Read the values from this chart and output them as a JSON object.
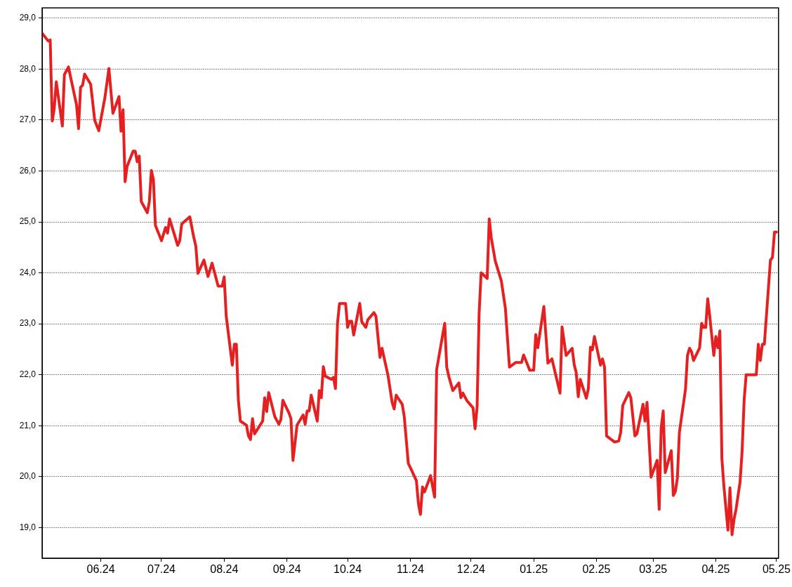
{
  "chart_data": {
    "type": "line",
    "x": [
      "2024-05-03",
      "2024-05-06",
      "2024-05-07",
      "2024-05-08",
      "2024-05-09",
      "2024-05-10",
      "2024-05-13",
      "2024-05-14",
      "2024-05-16",
      "2024-05-20",
      "2024-05-21",
      "2024-05-22",
      "2024-05-23",
      "2024-05-24",
      "2024-05-27",
      "2024-05-29",
      "2024-05-31",
      "2024-06-03",
      "2024-06-05",
      "2024-06-07",
      "2024-06-10",
      "2024-06-11",
      "2024-06-12",
      "2024-06-13",
      "2024-06-14",
      "2024-06-17",
      "2024-06-18",
      "2024-06-19",
      "2024-06-20",
      "2024-06-21",
      "2024-06-24",
      "2024-06-25",
      "2024-06-26",
      "2024-06-27",
      "2024-06-28",
      "2024-07-01",
      "2024-07-03",
      "2024-07-04",
      "2024-07-05",
      "2024-07-09",
      "2024-07-10",
      "2024-07-11",
      "2024-07-15",
      "2024-07-17",
      "2024-07-18",
      "2024-07-19",
      "2024-07-22",
      "2024-07-24",
      "2024-07-26",
      "2024-07-29",
      "2024-07-31",
      "2024-08-01",
      "2024-08-02",
      "2024-08-05",
      "2024-08-06",
      "2024-08-07",
      "2024-08-08",
      "2024-08-09",
      "2024-08-12",
      "2024-08-13",
      "2024-08-14",
      "2024-08-15",
      "2024-08-16",
      "2024-08-20",
      "2024-08-21",
      "2024-08-22",
      "2024-08-23",
      "2024-08-26",
      "2024-08-28",
      "2024-08-29",
      "2024-08-30",
      "2024-09-02",
      "2024-09-03",
      "2024-09-04",
      "2024-09-06",
      "2024-09-09",
      "2024-09-10",
      "2024-09-11",
      "2024-09-12",
      "2024-09-13",
      "2024-09-16",
      "2024-09-17",
      "2024-09-18",
      "2024-09-19",
      "2024-09-20",
      "2024-09-23",
      "2024-09-24",
      "2024-09-25",
      "2024-09-26",
      "2024-09-27",
      "2024-09-30",
      "2024-10-01",
      "2024-10-02",
      "2024-10-03",
      "2024-10-04",
      "2024-10-07",
      "2024-10-08",
      "2024-10-10",
      "2024-10-11",
      "2024-10-14",
      "2024-10-15",
      "2024-10-17",
      "2024-10-18",
      "2024-10-21",
      "2024-10-23",
      "2024-10-24",
      "2024-10-25",
      "2024-10-28",
      "2024-10-29",
      "2024-10-31",
      "2024-11-01",
      "2024-11-04",
      "2024-11-05",
      "2024-11-06",
      "2024-11-07",
      "2024-11-08",
      "2024-11-11",
      "2024-11-13",
      "2024-11-14",
      "2024-11-18",
      "2024-11-19",
      "2024-11-20",
      "2024-11-22",
      "2024-11-25",
      "2024-11-26",
      "2024-11-27",
      "2024-11-29",
      "2024-12-02",
      "2024-12-03",
      "2024-12-04",
      "2024-12-05",
      "2024-12-06",
      "2024-12-09",
      "2024-12-10",
      "2024-12-11",
      "2024-12-13",
      "2024-12-16",
      "2024-12-18",
      "2024-12-20",
      "2024-12-23",
      "2024-12-26",
      "2024-12-27",
      "2024-12-30",
      "2025-01-01",
      "2025-01-02",
      "2025-01-03",
      "2025-01-06",
      "2025-01-08",
      "2025-01-10",
      "2025-01-14",
      "2025-01-15",
      "2025-01-17",
      "2025-01-20",
      "2025-01-21",
      "2025-01-22",
      "2025-01-23",
      "2025-01-24",
      "2025-01-27",
      "2025-01-28",
      "2025-01-29",
      "2025-01-30",
      "2025-01-31",
      "2025-02-03",
      "2025-02-04",
      "2025-02-05",
      "2025-02-06",
      "2025-02-10",
      "2025-02-12",
      "2025-02-13",
      "2025-02-14",
      "2025-02-17",
      "2025-02-18",
      "2025-02-20",
      "2025-02-21",
      "2025-02-24",
      "2025-02-25",
      "2025-02-26",
      "2025-02-28",
      "2025-03-03",
      "2025-03-04",
      "2025-03-05",
      "2025-03-06",
      "2025-03-07",
      "2025-03-10",
      "2025-03-11",
      "2025-03-12",
      "2025-03-13",
      "2025-03-14",
      "2025-03-17",
      "2025-03-18",
      "2025-03-19",
      "2025-03-20",
      "2025-03-21",
      "2025-03-24",
      "2025-03-25",
      "2025-03-26",
      "2025-03-27",
      "2025-03-28",
      "2025-03-29",
      "2025-03-31",
      "2025-04-01",
      "2025-04-02",
      "2025-04-03",
      "2025-04-04",
      "2025-04-05",
      "2025-04-07",
      "2025-04-08",
      "2025-04-09",
      "2025-04-10",
      "2025-04-11",
      "2025-04-13",
      "2025-04-14",
      "2025-04-15",
      "2025-04-16",
      "2025-04-21",
      "2025-04-22",
      "2025-04-23",
      "2025-04-24",
      "2025-04-25",
      "2025-04-26",
      "2025-04-28",
      "2025-04-29",
      "2025-04-30",
      "2025-05-01"
    ],
    "series": [
      {
        "color": "#e62020",
        "values": [
          28.7,
          28.55,
          28.57,
          26.98,
          27.23,
          27.75,
          26.88,
          27.89,
          28.04,
          27.3,
          26.83,
          27.64,
          27.68,
          27.9,
          27.7,
          26.99,
          26.79,
          27.43,
          28.01,
          27.13,
          27.46,
          26.78,
          27.2,
          25.79,
          26.09,
          26.39,
          26.39,
          26.18,
          26.29,
          25.4,
          25.18,
          25.4,
          26.01,
          25.83,
          24.93,
          24.63,
          24.89,
          24.78,
          25.06,
          24.54,
          24.63,
          24.96,
          25.1,
          24.69,
          24.52,
          23.99,
          24.25,
          23.93,
          24.19,
          23.74,
          23.74,
          23.92,
          23.15,
          22.19,
          22.6,
          22.6,
          21.5,
          21.09,
          21.01,
          20.8,
          20.73,
          21.14,
          20.84,
          21.09,
          21.55,
          21.28,
          21.65,
          21.18,
          21.03,
          21.12,
          21.5,
          21.25,
          21.14,
          20.32,
          21.01,
          21.21,
          21.03,
          21.29,
          21.29,
          21.6,
          21.09,
          21.69,
          21.55,
          22.16,
          21.97,
          21.91,
          21.95,
          21.73,
          23.01,
          23.4,
          23.4,
          22.93,
          23.05,
          23.05,
          22.78,
          23.4,
          23.04,
          22.93,
          23.08,
          23.22,
          23.15,
          22.34,
          22.52,
          21.98,
          21.46,
          21.33,
          21.6,
          21.42,
          21.18,
          20.26,
          20.18,
          19.92,
          19.47,
          19.26,
          19.8,
          19.7,
          20.02,
          19.6,
          22.1,
          23.01,
          22.15,
          21.97,
          21.69,
          21.84,
          21.55,
          21.64,
          21.49,
          21.35,
          20.94,
          21.36,
          23.2,
          24.0,
          23.89,
          25.06,
          24.69,
          24.23,
          23.84,
          23.3,
          22.15,
          22.24,
          22.24,
          22.39,
          22.09,
          22.09,
          22.79,
          22.53,
          23.34,
          22.23,
          22.31,
          21.64,
          22.94,
          22.38,
          22.52,
          22.2,
          22.04,
          21.57,
          21.91,
          21.54,
          21.73,
          22.54,
          22.49,
          22.75,
          22.19,
          22.31,
          22.15,
          20.8,
          20.68,
          20.7,
          20.87,
          21.4,
          21.65,
          21.55,
          20.8,
          20.84,
          21.42,
          21.09,
          21.46,
          19.99,
          20.32,
          19.36,
          20.96,
          21.29,
          20.08,
          20.51,
          19.63,
          19.71,
          19.97,
          20.87,
          21.71,
          22.38,
          22.52,
          22.45,
          22.28,
          22.53,
          23.01,
          22.93,
          22.93,
          23.49,
          23.15,
          22.38,
          22.75,
          22.53,
          22.86,
          20.36,
          19.81,
          18.95,
          19.78,
          18.86,
          19.16,
          19.36,
          19.9,
          20.5,
          21.5,
          22.0,
          22.0,
          22.6,
          22.28,
          22.6,
          22.6,
          23.15,
          24.25,
          24.3,
          24.8,
          24.8
        ]
      }
    ],
    "xlim": [
      "2024-05-03",
      "2025-05-02"
    ],
    "xticks": [
      {
        "value": "2024-06-01",
        "label": "06.24"
      },
      {
        "value": "2024-07-01",
        "label": "07.24"
      },
      {
        "value": "2024-08-01",
        "label": "08.24"
      },
      {
        "value": "2024-09-01",
        "label": "09.24"
      },
      {
        "value": "2024-10-01",
        "label": "10.24"
      },
      {
        "value": "2024-11-01",
        "label": "11.24"
      },
      {
        "value": "2024-12-01",
        "label": "12.24"
      },
      {
        "value": "2025-01-01",
        "label": "01.25"
      },
      {
        "value": "2025-02-01",
        "label": "02.25"
      },
      {
        "value": "2025-03-01",
        "label": "03.25"
      },
      {
        "value": "2025-04-01",
        "label": "04.25"
      },
      {
        "value": "2025-05-01",
        "label": "05.25"
      }
    ],
    "ylim": [
      18.4,
      29.2
    ],
    "yticks": [
      {
        "value": 19,
        "label": "19,0"
      },
      {
        "value": 20,
        "label": "20,0"
      },
      {
        "value": 21,
        "label": "21,0"
      },
      {
        "value": 22,
        "label": "22,0"
      },
      {
        "value": 23,
        "label": "23,0"
      },
      {
        "value": 24,
        "label": "24,0"
      },
      {
        "value": 25,
        "label": "25,0"
      },
      {
        "value": 26,
        "label": "26,0"
      },
      {
        "value": 27,
        "label": "27,0"
      },
      {
        "value": 28,
        "label": "28,0"
      },
      {
        "value": 29,
        "label": "29,0"
      }
    ],
    "grid": "y",
    "legend": false,
    "marker": "none",
    "line_style": "solid"
  }
}
